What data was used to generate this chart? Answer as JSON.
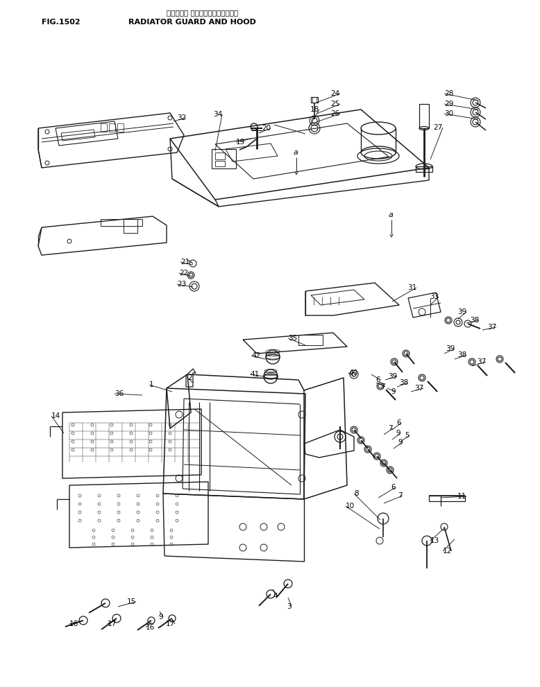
{
  "title_japanese": "ラジエータ ガード　オヨビ　フード",
  "title_english": "RADIATOR GUARD AND HOOD",
  "fig_label": "FIG.1502",
  "bg_color": "#ffffff",
  "line_color": "#1a1a1a",
  "fig_width": 7.78,
  "fig_height": 9.91,
  "dpi": 100
}
